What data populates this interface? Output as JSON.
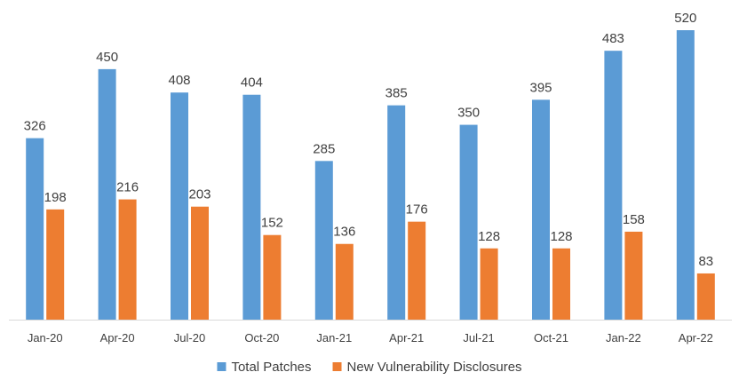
{
  "chart_data": {
    "type": "bar",
    "title": "",
    "xlabel": "",
    "ylabel": "",
    "categories": [
      "Jan-20",
      "Apr-20",
      "Jul-20",
      "Oct-20",
      "Jan-21",
      "Apr-21",
      "Jul-21",
      "Oct-21",
      "Jan-22",
      "Apr-22"
    ],
    "series": [
      {
        "name": "Total Patches",
        "color": "#5b9bd5",
        "values": [
          326,
          450,
          408,
          404,
          285,
          385,
          350,
          395,
          483,
          520
        ]
      },
      {
        "name": "New Vulnerability Disclosures",
        "color": "#ed7d31",
        "values": [
          198,
          216,
          203,
          152,
          136,
          176,
          128,
          128,
          158,
          83
        ]
      }
    ],
    "ylim": [
      0,
      520
    ],
    "grid": false,
    "data_labels": true,
    "legend_position": "bottom"
  }
}
